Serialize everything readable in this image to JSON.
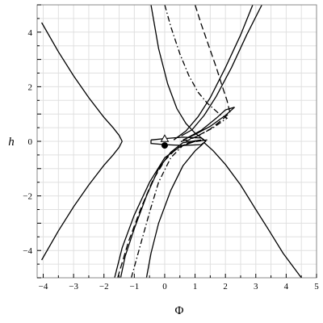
{
  "chart_data": {
    "type": "line",
    "xlabel": "Φ",
    "ylabel": "h",
    "xlim": [
      -4.2,
      5
    ],
    "ylim": [
      -5,
      5
    ],
    "grid": true,
    "x_ticks": [
      -4,
      -3,
      -2,
      -1,
      0,
      1,
      2,
      3,
      4,
      5
    ],
    "y_ticks": [
      -4,
      -2,
      0,
      2,
      4
    ],
    "x_tick_labels": [
      "−4",
      "−3",
      "−2",
      "−1",
      "0",
      "1",
      "2",
      "3",
      "4",
      "5"
    ],
    "y_tick_labels": [
      "−4",
      "−2",
      "0",
      "2",
      "4"
    ],
    "series": [
      {
        "style": "solid",
        "x": [
          -4.05,
          -3.5,
          -3.0,
          -2.5,
          -2.0,
          -1.7,
          -1.5,
          -1.4
        ],
        "y": [
          4.35,
          3.28,
          2.4,
          1.6,
          0.88,
          0.5,
          0.22,
          0.0
        ]
      },
      {
        "style": "solid",
        "x": [
          -4.05,
          -3.5,
          -3.0,
          -2.5,
          -2.0,
          -1.7,
          -1.5,
          -1.4
        ],
        "y": [
          -4.35,
          -3.28,
          -2.4,
          -1.6,
          -0.88,
          -0.5,
          -0.22,
          0.0
        ]
      },
      {
        "style": "solid",
        "x": [
          -0.45,
          -0.2,
          0.1,
          0.4,
          0.7,
          1.0,
          1.3
        ],
        "y": [
          5.0,
          3.4,
          2.1,
          1.2,
          0.65,
          0.3,
          0.05
        ]
      },
      {
        "style": "solid",
        "x": [
          1.3,
          1.6,
          2.0,
          2.5,
          3.0,
          3.4,
          3.9,
          4.5
        ],
        "y": [
          -0.05,
          -0.35,
          -0.85,
          -1.6,
          -2.5,
          -3.2,
          -4.1,
          -5.0
        ]
      },
      {
        "style": "solid",
        "x": [
          0.55,
          0.9,
          1.3,
          1.7,
          2.2,
          2.7,
          3.2
        ],
        "y": [
          0.2,
          0.42,
          0.95,
          1.65,
          2.7,
          3.9,
          5.0
        ]
      },
      {
        "style": "solid",
        "x": [
          0.3,
          0.7,
          1.1,
          1.5,
          2.0,
          2.5,
          2.9
        ],
        "y": [
          0.05,
          0.38,
          0.9,
          1.6,
          2.7,
          3.9,
          5.0
        ]
      },
      {
        "style": "solid",
        "x": [
          -1.45,
          -1.3,
          -1.0,
          -0.6,
          -0.2,
          0.2,
          0.6,
          1.2
        ],
        "y": [
          -5.0,
          -4.2,
          -3.2,
          -2.0,
          -1.0,
          -0.4,
          -0.05,
          0.05
        ]
      },
      {
        "style": "solid",
        "x": [
          -1.65,
          -1.4,
          -1.0,
          -0.5,
          0.0,
          0.5,
          1.0,
          1.4
        ],
        "y": [
          -5.0,
          -3.9,
          -2.7,
          -1.5,
          -0.6,
          -0.2,
          0.0,
          0.05
        ]
      },
      {
        "style": "solid",
        "x": [
          -0.6,
          -0.45,
          -0.2,
          0.2,
          0.6,
          1.0,
          1.2,
          1.3
        ],
        "y": [
          -5.0,
          -4.1,
          -3.0,
          -1.8,
          -0.9,
          -0.35,
          -0.15,
          -0.05
        ]
      },
      {
        "style": "solid",
        "x": [
          -0.45,
          0.0,
          0.6,
          1.2,
          1.35,
          1.2,
          0.6,
          0.0,
          -0.45,
          -0.45
        ],
        "y": [
          0.05,
          0.1,
          0.15,
          0.12,
          0.0,
          -0.12,
          -0.15,
          -0.12,
          -0.08,
          0.05
        ]
      },
      {
        "style": "solid",
        "x": [
          0.7,
          1.2,
          1.7,
          2.0,
          2.3,
          2.0,
          1.5,
          1.0,
          0.6
        ],
        "y": [
          0.1,
          0.4,
          0.85,
          1.15,
          1.25,
          0.95,
          0.55,
          0.25,
          0.05
        ]
      },
      {
        "style": "dash",
        "x": [
          1.0,
          1.2,
          1.45,
          1.7,
          1.9,
          2.05,
          2.15,
          1.9,
          1.5,
          1.0,
          0.5
        ],
        "y": [
          5.0,
          4.3,
          3.5,
          2.7,
          2.0,
          1.5,
          1.05,
          0.8,
          0.45,
          0.15,
          -0.02
        ]
      },
      {
        "style": "dash",
        "x": [
          -1.55,
          -1.2,
          -0.8,
          -0.4,
          0.0,
          0.4,
          0.8,
          1.2
        ],
        "y": [
          -5.0,
          -3.7,
          -2.5,
          -1.45,
          -0.7,
          -0.25,
          -0.05,
          0.02
        ]
      },
      {
        "style": "dashdot",
        "x": [
          0.0,
          0.2,
          0.5,
          0.8,
          1.1,
          1.4,
          1.8,
          2.05,
          1.6,
          1.1,
          0.7
        ],
        "y": [
          5.0,
          4.2,
          3.2,
          2.4,
          1.8,
          1.4,
          1.0,
          0.85,
          0.5,
          0.2,
          0.0
        ]
      },
      {
        "style": "dashdot",
        "x": [
          -1.1,
          -0.8,
          -0.5,
          -0.2,
          0.2,
          0.6,
          1.0
        ],
        "y": [
          -5.0,
          -3.8,
          -2.6,
          -1.5,
          -0.6,
          -0.15,
          0.02
        ]
      }
    ],
    "points": [
      {
        "x": 0.0,
        "y": 0.08,
        "marker": "open-triangle"
      },
      {
        "x": 0.0,
        "y": -0.15,
        "marker": "filled-circle"
      }
    ]
  }
}
